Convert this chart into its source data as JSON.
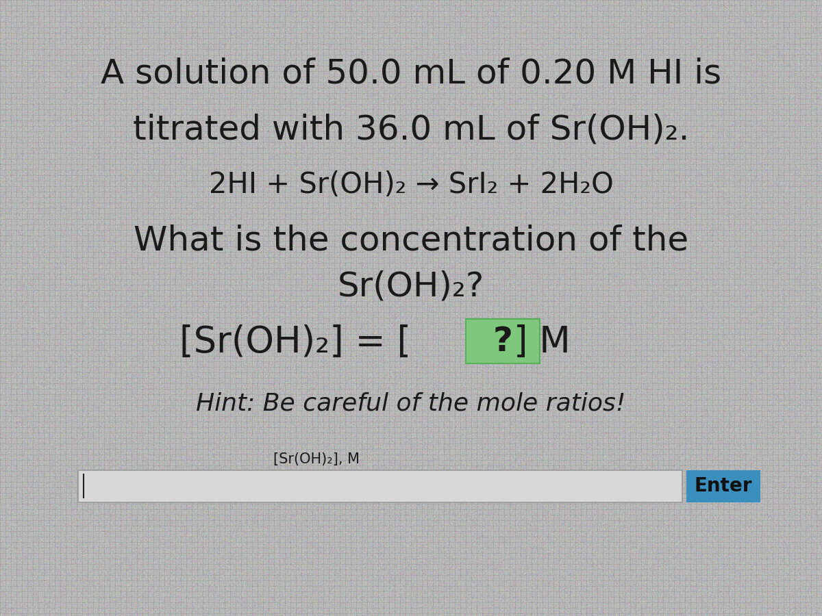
{
  "bg_color": "#b0b8b8",
  "text_color": "#1a1a1a",
  "line1": "A solution of 50.0 mL of 0.20 M HI is",
  "line2": "titrated with 36.0 mL of Sr(OH)₂.",
  "line3": "2HI + Sr(OH)₂ → SrI₂ + 2H₂O",
  "line4": "What is the concentration of the",
  "line5": "Sr(OH)₂?",
  "line6": "[Sr(OH)₂] = [ ? ] M",
  "hint_text": "Hint: Be careful of the mole ratios!",
  "input_label": "[Sr(OH)₂], M",
  "enter_text": "Enter",
  "enter_bg": "#3a8fbf",
  "enter_text_color": "#111111",
  "box_color": "#7ec87e",
  "box_border_color": "#5aaf5a",
  "input_box_border": "#999999",
  "main_font_size": 36,
  "eq_font_size": 30,
  "hint_font_size": 26,
  "label_font_size": 15,
  "enter_font_size": 20
}
